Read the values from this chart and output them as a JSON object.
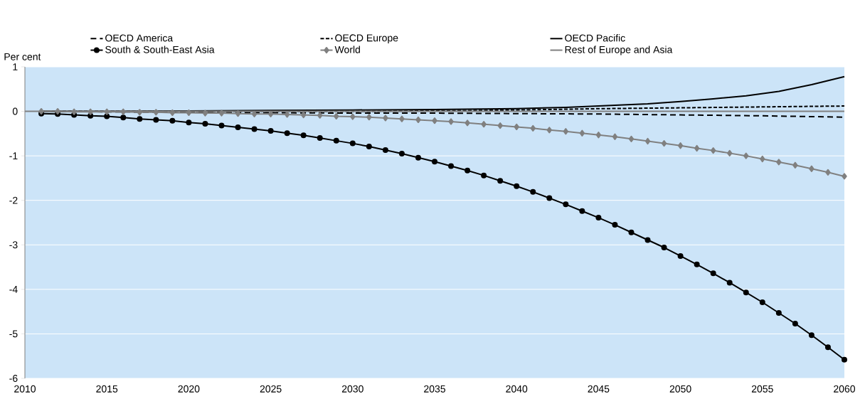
{
  "chart_data": {
    "type": "line",
    "ylabel": "Per cent",
    "x": [
      2011,
      2012,
      2013,
      2014,
      2015,
      2016,
      2017,
      2018,
      2019,
      2020,
      2021,
      2022,
      2023,
      2024,
      2025,
      2026,
      2027,
      2028,
      2029,
      2030,
      2031,
      2032,
      2033,
      2034,
      2035,
      2036,
      2037,
      2038,
      2039,
      2040,
      2041,
      2042,
      2043,
      2044,
      2045,
      2046,
      2047,
      2048,
      2049,
      2050,
      2051,
      2052,
      2053,
      2054,
      2055,
      2056,
      2057,
      2058,
      2059,
      2060
    ],
    "xlim": [
      2010,
      2060
    ],
    "xticks": [
      2010,
      2015,
      2020,
      2025,
      2030,
      2035,
      2040,
      2045,
      2050,
      2055,
      2060
    ],
    "ylim": [
      -6,
      1
    ],
    "yticks": [
      -6,
      -5,
      -4,
      -3,
      -2,
      -1,
      0,
      1
    ],
    "grid": "y",
    "legend": "top",
    "series": [
      {
        "name": "OECD America",
        "color": "#000000",
        "line_style": "dashed",
        "marker": "none",
        "x": [
          2011,
          2015,
          2020,
          2025,
          2030,
          2035,
          2040,
          2045,
          2050,
          2055,
          2060
        ],
        "values": [
          0,
          -0.01,
          -0.02,
          -0.03,
          -0.04,
          -0.04,
          -0.05,
          -0.06,
          -0.08,
          -0.1,
          -0.13
        ]
      },
      {
        "name": "OECD Europe",
        "color": "#000000",
        "line_style": "dotted",
        "marker": "none",
        "x": [
          2011,
          2015,
          2020,
          2025,
          2030,
          2035,
          2040,
          2045,
          2050,
          2055,
          2060
        ],
        "values": [
          0,
          0,
          0,
          0,
          0,
          0.01,
          0.03,
          0.06,
          0.08,
          0.1,
          0.12
        ]
      },
      {
        "name": "OECD Pacific",
        "color": "#000000",
        "line_style": "solid",
        "marker": "none",
        "x": [
          2011,
          2015,
          2020,
          2025,
          2030,
          2035,
          2040,
          2043,
          2045,
          2048,
          2050,
          2052,
          2054,
          2056,
          2058,
          2060
        ],
        "values": [
          0,
          0,
          0.01,
          0.02,
          0.03,
          0.04,
          0.06,
          0.09,
          0.12,
          0.17,
          0.22,
          0.28,
          0.35,
          0.45,
          0.6,
          0.78
        ]
      },
      {
        "name": "South & South-East Asia",
        "color": "#000000",
        "line_style": "solid",
        "marker": "circle",
        "values": [
          -0.05,
          -0.06,
          -0.08,
          -0.1,
          -0.11,
          -0.14,
          -0.17,
          -0.19,
          -0.21,
          -0.25,
          -0.28,
          -0.32,
          -0.36,
          -0.4,
          -0.44,
          -0.49,
          -0.54,
          -0.6,
          -0.66,
          -0.72,
          -0.79,
          -0.87,
          -0.95,
          -1.04,
          -1.13,
          -1.23,
          -1.33,
          -1.44,
          -1.56,
          -1.68,
          -1.81,
          -1.95,
          -2.09,
          -2.24,
          -2.39,
          -2.55,
          -2.72,
          -2.89,
          -3.06,
          -3.25,
          -3.44,
          -3.64,
          -3.85,
          -4.07,
          -4.29,
          -4.53,
          -4.77,
          -5.03,
          -5.3,
          -5.58
        ]
      },
      {
        "name": "World",
        "color": "#808080",
        "line_style": "solid",
        "marker": "diamond",
        "values": [
          0,
          0,
          -0.01,
          -0.01,
          -0.01,
          -0.01,
          -0.02,
          -0.02,
          -0.03,
          -0.03,
          -0.04,
          -0.04,
          -0.05,
          -0.06,
          -0.06,
          -0.07,
          -0.08,
          -0.09,
          -0.11,
          -0.12,
          -0.13,
          -0.15,
          -0.17,
          -0.19,
          -0.21,
          -0.23,
          -0.26,
          -0.29,
          -0.32,
          -0.35,
          -0.38,
          -0.42,
          -0.45,
          -0.49,
          -0.53,
          -0.57,
          -0.62,
          -0.67,
          -0.72,
          -0.77,
          -0.83,
          -0.88,
          -0.94,
          -1.0,
          -1.07,
          -1.14,
          -1.21,
          -1.29,
          -1.37,
          -1.46
        ]
      },
      {
        "name": "Rest of Europe and Asia",
        "color": "#808080",
        "line_style": "solid",
        "marker": "none",
        "x": [
          2010,
          2060
        ],
        "values": [
          0,
          0
        ]
      }
    ]
  }
}
